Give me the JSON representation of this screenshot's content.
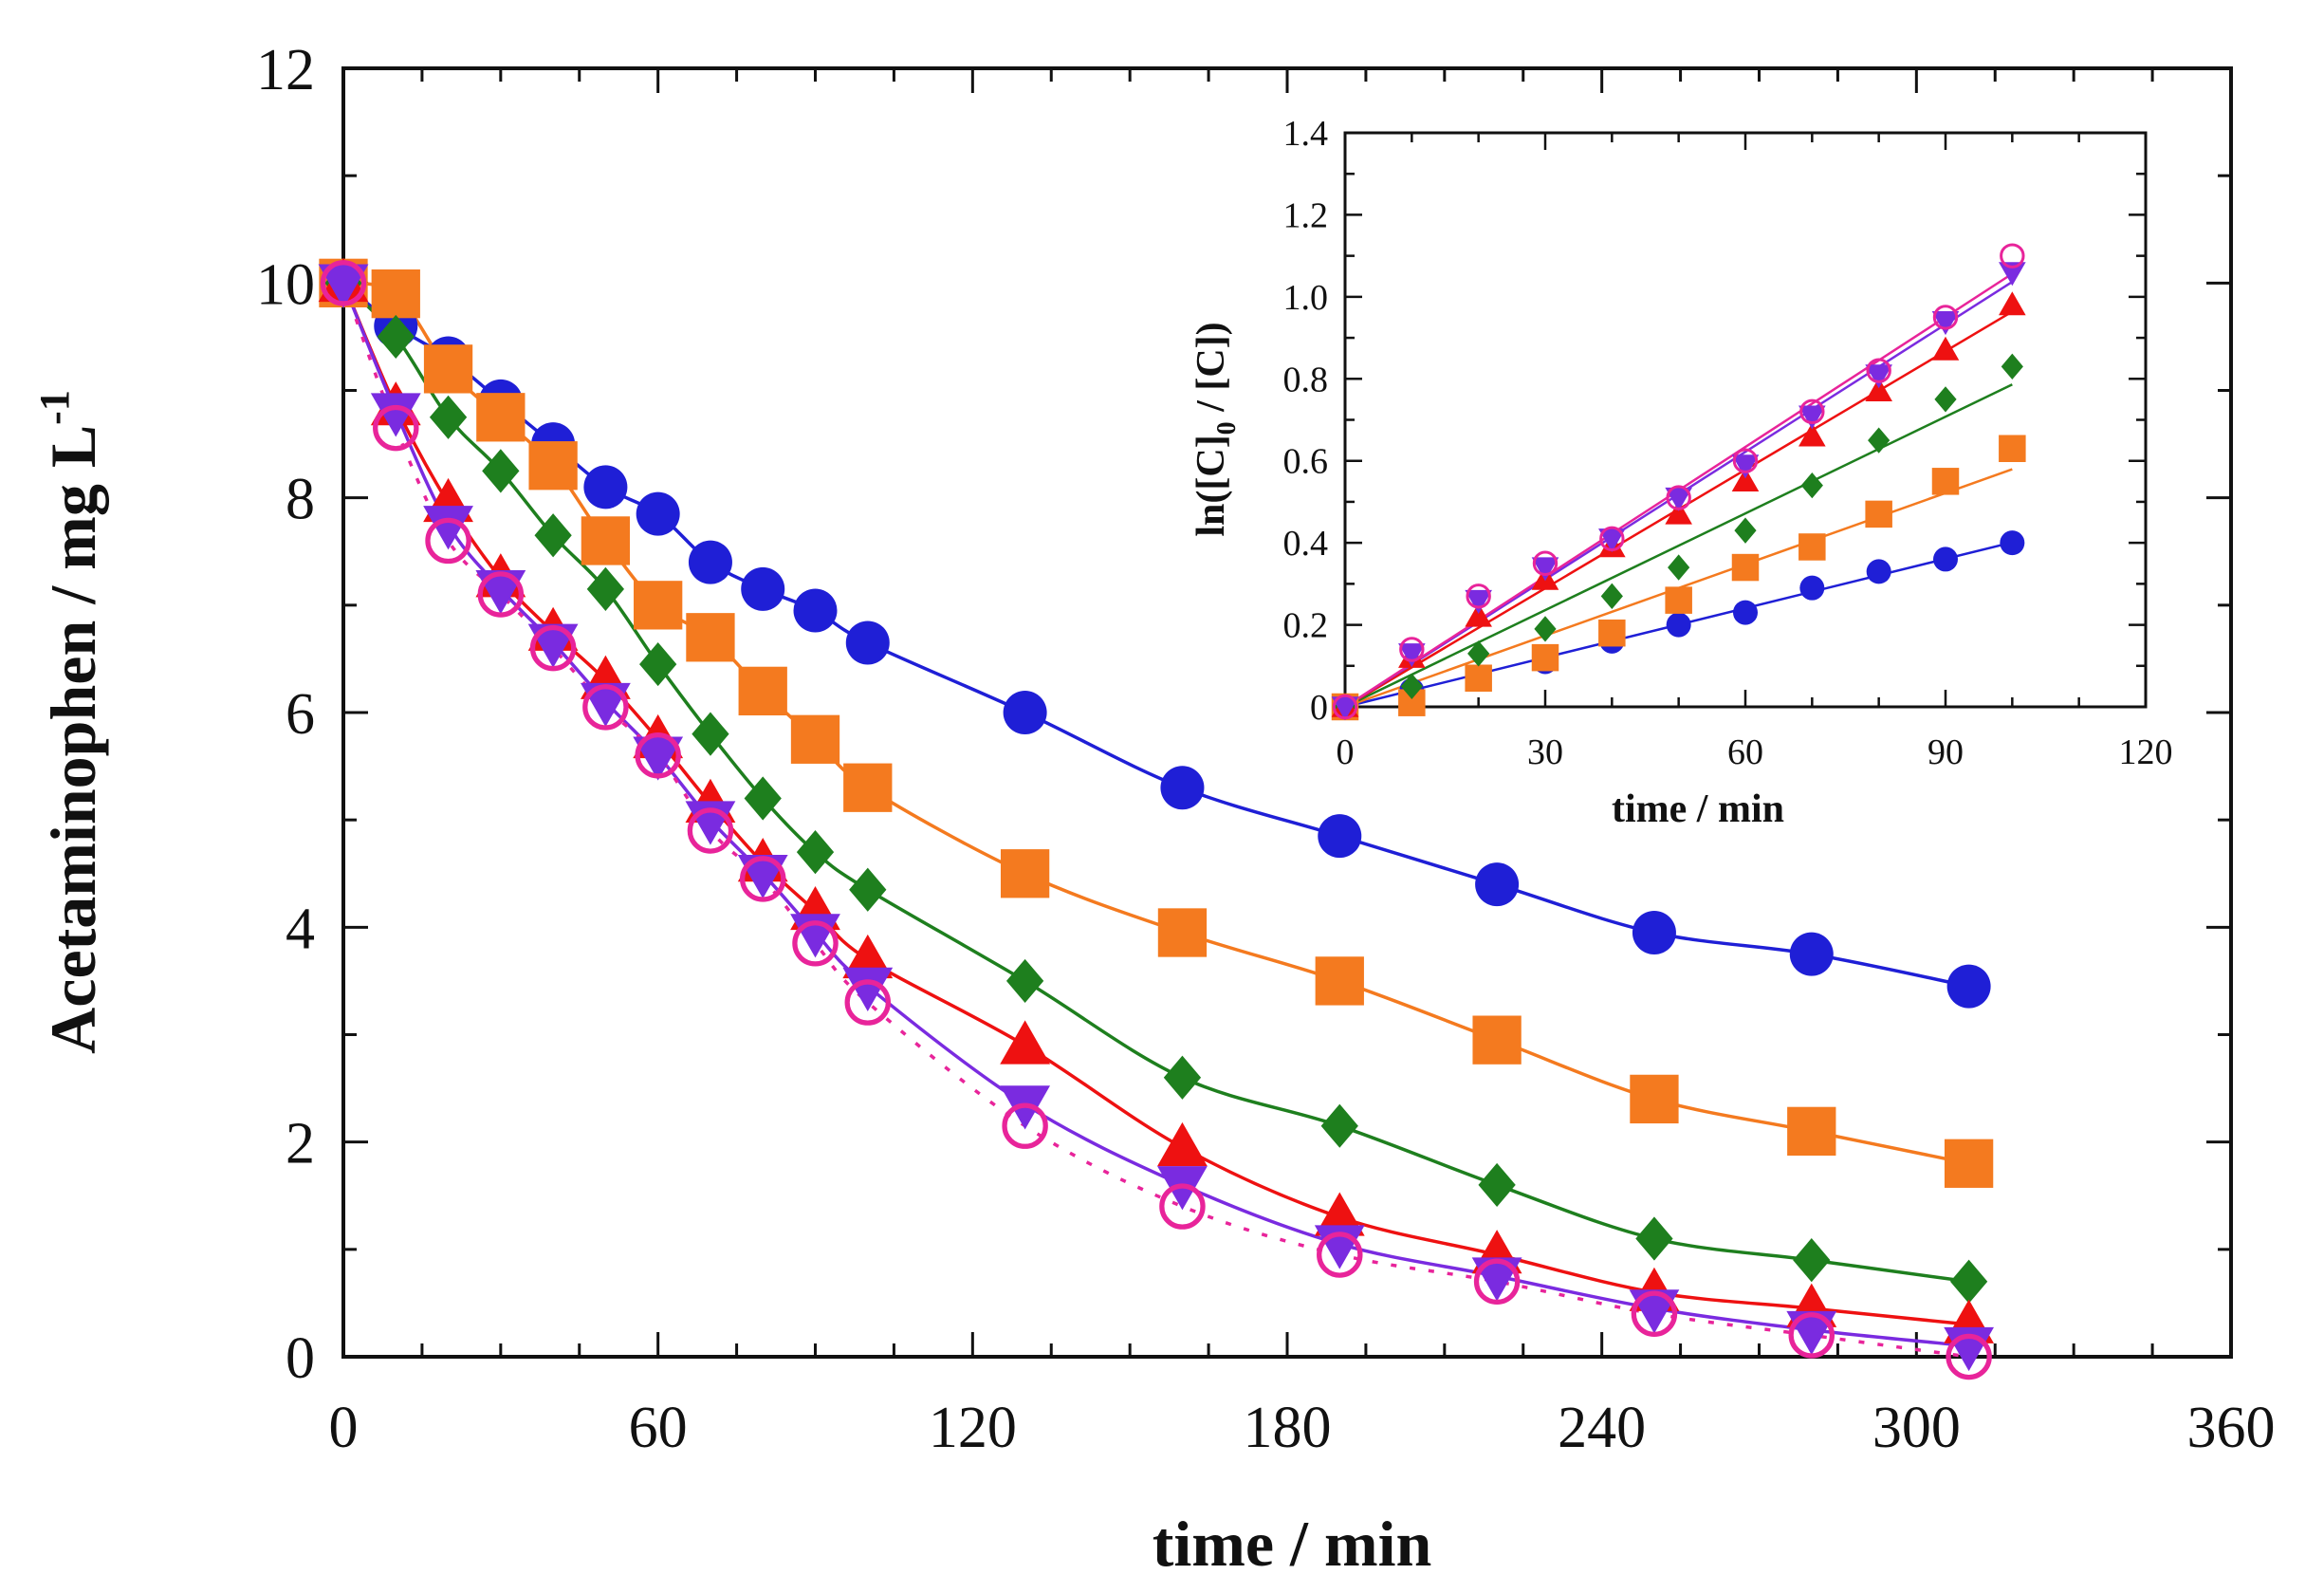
{
  "chart_data": [
    {
      "id": "main",
      "type": "line",
      "xlabel": "time / min",
      "ylabel": "Acetaminophen / mg L",
      "ylabel_sup": "-1",
      "xlim": [
        0,
        360
      ],
      "ylim": [
        0,
        12
      ],
      "xticks": [
        0,
        60,
        120,
        180,
        240,
        300,
        360
      ],
      "yticks": [
        0,
        2,
        4,
        6,
        8,
        10,
        12
      ],
      "grid": false,
      "series": [
        {
          "name": "blue circles",
          "color": "#1f1fd6",
          "marker": "circle",
          "x": [
            0,
            10,
            20,
            30,
            40,
            50,
            60,
            70,
            80,
            90,
            100,
            130,
            160,
            190,
            220,
            250,
            280,
            310
          ],
          "y": [
            10.0,
            9.6,
            9.3,
            8.9,
            8.5,
            8.1,
            7.85,
            7.4,
            7.15,
            6.95,
            6.65,
            6.0,
            5.3,
            4.85,
            4.4,
            3.95,
            3.75,
            3.45
          ]
        },
        {
          "name": "orange squares",
          "color": "#f47a1f",
          "marker": "square",
          "x": [
            0,
            10,
            20,
            30,
            40,
            50,
            60,
            70,
            80,
            90,
            100,
            130,
            160,
            190,
            220,
            250,
            280,
            310
          ],
          "y": [
            10.0,
            9.9,
            9.2,
            8.75,
            8.3,
            7.6,
            7.0,
            6.7,
            6.2,
            5.75,
            5.3,
            4.5,
            3.95,
            3.5,
            2.95,
            2.4,
            2.1,
            1.8
          ]
        },
        {
          "name": "green diamonds",
          "color": "#1e7f1e",
          "marker": "diamond",
          "x": [
            0,
            10,
            20,
            30,
            40,
            50,
            60,
            70,
            80,
            90,
            100,
            130,
            160,
            190,
            220,
            250,
            280,
            310
          ],
          "y": [
            10.0,
            9.5,
            8.75,
            8.25,
            7.65,
            7.15,
            6.45,
            5.8,
            5.2,
            4.7,
            4.35,
            3.5,
            2.6,
            2.15,
            1.6,
            1.1,
            0.9,
            0.7
          ]
        },
        {
          "name": "red triangles",
          "color": "#ee1111",
          "marker": "triangle-up",
          "x": [
            0,
            10,
            20,
            30,
            40,
            50,
            60,
            70,
            80,
            90,
            100,
            130,
            160,
            190,
            220,
            250,
            280,
            310
          ],
          "y": [
            10.0,
            8.85,
            7.95,
            7.25,
            6.75,
            6.3,
            5.75,
            5.15,
            4.6,
            4.15,
            3.7,
            2.9,
            1.95,
            1.3,
            0.95,
            0.6,
            0.45,
            0.3
          ]
        },
        {
          "name": "purple inverted triangles",
          "color": "#7a2be0",
          "marker": "triangle-down",
          "x": [
            0,
            10,
            20,
            30,
            40,
            50,
            60,
            70,
            80,
            90,
            100,
            130,
            160,
            190,
            220,
            250,
            280,
            310
          ],
          "y": [
            10.0,
            8.8,
            7.75,
            7.15,
            6.65,
            6.1,
            5.6,
            5.0,
            4.5,
            3.95,
            3.45,
            2.35,
            1.6,
            1.05,
            0.75,
            0.45,
            0.25,
            0.1
          ]
        },
        {
          "name": "pink open circles",
          "color": "#e8249a",
          "marker": "open-circle",
          "dashed": true,
          "x": [
            0,
            10,
            20,
            30,
            40,
            50,
            60,
            70,
            80,
            90,
            100,
            130,
            160,
            190,
            220,
            250,
            280,
            310
          ],
          "y": [
            10.0,
            8.65,
            7.6,
            7.1,
            6.6,
            6.05,
            5.6,
            4.9,
            4.45,
            3.85,
            3.3,
            2.15,
            1.4,
            0.95,
            0.7,
            0.4,
            0.2,
            0.0
          ]
        }
      ]
    },
    {
      "id": "inset",
      "type": "scatter",
      "xlabel": "time / min",
      "ylabel": "ln([C]",
      "ylabel_sub": "0",
      "ylabel_tail": " / [C])",
      "xlim": [
        0,
        120
      ],
      "ylim": [
        0,
        1.4
      ],
      "xticks": [
        0,
        30,
        60,
        90,
        120
      ],
      "yticks": [
        0,
        0.2,
        0.4,
        0.6,
        0.8,
        1.0,
        1.2,
        1.4
      ],
      "ytick_labels": [
        "0",
        "0.2",
        "0.4",
        "0.6",
        "0.8",
        "1.0",
        "1.2",
        "1.4"
      ],
      "fit": "linear through origin",
      "series": [
        {
          "name": "blue circles",
          "color": "#1f1fd6",
          "marker": "circle",
          "x": [
            0,
            10,
            20,
            30,
            40,
            50,
            60,
            70,
            80,
            90,
            100
          ],
          "y": [
            0,
            0.04,
            0.07,
            0.11,
            0.16,
            0.2,
            0.23,
            0.29,
            0.33,
            0.36,
            0.4
          ]
        },
        {
          "name": "orange squares",
          "color": "#f47a1f",
          "marker": "square",
          "x": [
            0,
            10,
            20,
            30,
            40,
            50,
            60,
            70,
            80,
            90,
            100
          ],
          "y": [
            0,
            0.01,
            0.07,
            0.12,
            0.18,
            0.26,
            0.34,
            0.39,
            0.47,
            0.55,
            0.63
          ]
        },
        {
          "name": "green diamonds",
          "color": "#1e7f1e",
          "marker": "diamond",
          "x": [
            0,
            10,
            20,
            30,
            40,
            50,
            60,
            70,
            80,
            90,
            100
          ],
          "y": [
            0,
            0.05,
            0.13,
            0.19,
            0.27,
            0.34,
            0.43,
            0.54,
            0.65,
            0.75,
            0.83
          ]
        },
        {
          "name": "red triangles",
          "color": "#ee1111",
          "marker": "triangle-up",
          "x": [
            0,
            10,
            20,
            30,
            40,
            50,
            60,
            70,
            80,
            90,
            100
          ],
          "y": [
            0,
            0.12,
            0.22,
            0.31,
            0.39,
            0.47,
            0.55,
            0.66,
            0.77,
            0.87,
            0.98
          ]
        },
        {
          "name": "purple inverted triangles",
          "color": "#7a2be0",
          "marker": "triangle-down",
          "x": [
            0,
            10,
            20,
            30,
            40,
            50,
            60,
            70,
            80,
            90,
            100
          ],
          "y": [
            0,
            0.13,
            0.26,
            0.34,
            0.41,
            0.51,
            0.59,
            0.71,
            0.81,
            0.94,
            1.06
          ]
        },
        {
          "name": "pink open circles",
          "color": "#e8249a",
          "marker": "open-circle",
          "x": [
            0,
            10,
            20,
            30,
            40,
            50,
            60,
            70,
            80,
            90,
            100
          ],
          "y": [
            0,
            0.14,
            0.27,
            0.35,
            0.41,
            0.51,
            0.6,
            0.72,
            0.82,
            0.95,
            1.1
          ]
        }
      ]
    }
  ]
}
